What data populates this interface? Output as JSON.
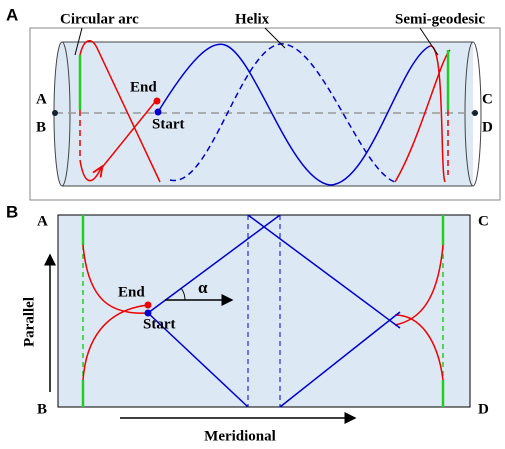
{
  "panels": [
    {
      "label": "A",
      "annotations": [
        "Circular arc",
        "Helix",
        "Semi-geodesic"
      ],
      "corners": [
        "A",
        "B",
        "C",
        "D"
      ],
      "points": [
        "End",
        "Start"
      ]
    },
    {
      "label": "B",
      "corners": [
        "A",
        "C",
        "B",
        "D"
      ],
      "points": [
        "End",
        "Start"
      ],
      "angle": "α",
      "axes": [
        "Parallel",
        "Meridional"
      ]
    }
  ]
}
